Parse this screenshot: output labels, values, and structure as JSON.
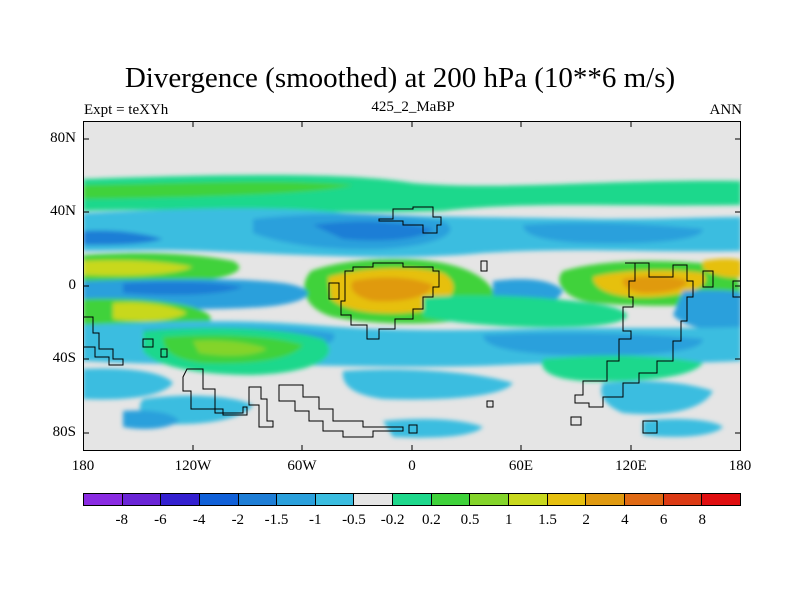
{
  "title": "Divergence (smoothed) at 200 hPa (10**6 m/s)",
  "left_label": "Expt = teXYh",
  "center_label": "425_2_MaBP",
  "right_label": "ANN",
  "lat_ticks": [
    "80N",
    "40N",
    "0",
    "40S",
    "80S"
  ],
  "lon_ticks": [
    "180",
    "120W",
    "60W",
    "0",
    "60E",
    "120E",
    "180"
  ],
  "colorbar": {
    "labels": [
      "-8",
      "-6",
      "-4",
      "-2",
      "-1.5",
      "-1",
      "-0.5",
      "-0.2",
      "0.2",
      "0.5",
      "1",
      "1.5",
      "2",
      "4",
      "6",
      "8"
    ],
    "colors": [
      "#8a2be2",
      "#6a25d6",
      "#3420d0",
      "#1060d8",
      "#1e7ed6",
      "#2aa0dc",
      "#3abde0",
      "#e5e5e5",
      "#1ed88c",
      "#3fd23a",
      "#84d42a",
      "#c8d81e",
      "#e6c010",
      "#e09a10",
      "#e06a14",
      "#dc3a14",
      "#e00e10"
    ]
  }
}
